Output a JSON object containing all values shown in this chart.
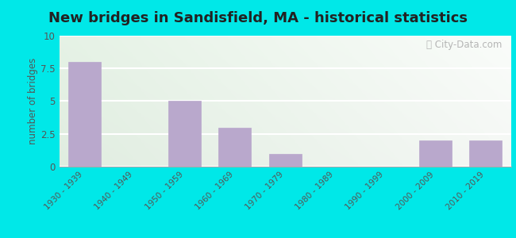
{
  "title": "New bridges in Sandisfield, MA - historical statistics",
  "categories": [
    "1930 - 1939",
    "1940 - 1949",
    "1950 - 1959",
    "1960 - 1969",
    "1970 - 1979",
    "1980 - 1989",
    "1990 - 1999",
    "2000 - 2009",
    "2010 - 2019"
  ],
  "values": [
    8,
    0,
    5,
    3,
    1,
    0,
    0,
    2,
    2
  ],
  "bar_color": "#b9a8cc",
  "ylabel": "number of bridges",
  "ylim": [
    0,
    10
  ],
  "yticks": [
    0,
    2.5,
    5,
    7.5,
    10
  ],
  "ytick_labels": [
    "0",
    "2.5",
    "5",
    "7.5",
    "10"
  ],
  "background_outer": "#00e8e8",
  "background_inner_tl": "#d8ead8",
  "background_inner_br": "#e8f4e0",
  "title_fontsize": 13,
  "title_fontweight": "bold",
  "title_color": "#222222",
  "watermark": "City-Data.com",
  "grid_color": "#e0e8d8",
  "axis_label_color": "#555555",
  "tick_label_color": "#555555"
}
